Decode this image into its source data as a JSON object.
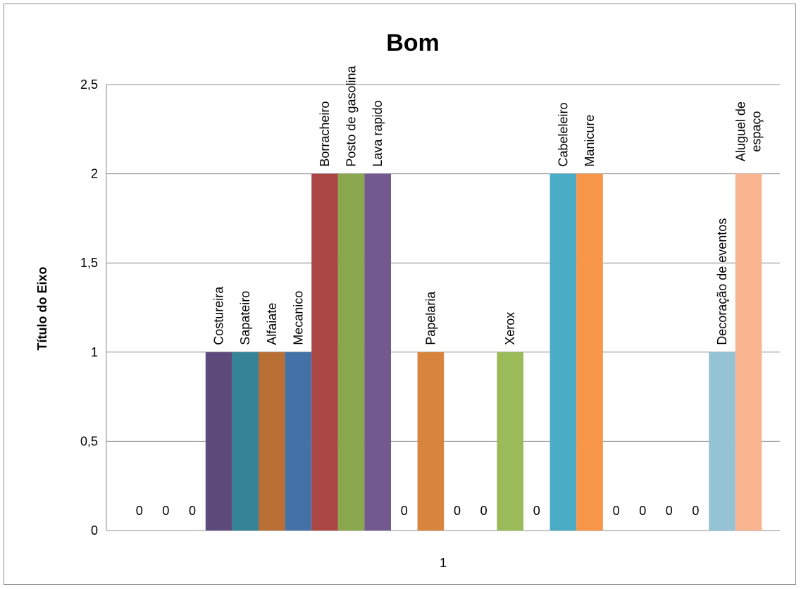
{
  "chart_data": {
    "type": "bar",
    "title": "Bom",
    "ylabel": "Título do Eixo",
    "xlabel": "",
    "categories": [
      "1"
    ],
    "ylim": [
      0,
      2.5
    ],
    "yticks": [
      "0",
      "0,5",
      "1",
      "1,5",
      "2",
      "2,5"
    ],
    "grid": true,
    "legend": "none",
    "series": [
      {
        "label": "",
        "value": 0,
        "color": "#4f81bd"
      },
      {
        "label": "",
        "value": 0,
        "color": "#c0504d"
      },
      {
        "label": "",
        "value": 0,
        "color": "#9bbb59"
      },
      {
        "label": "Costureira",
        "value": 1,
        "color": "#5f4b7b"
      },
      {
        "label": "Sapateiro",
        "value": 1,
        "color": "#348397"
      },
      {
        "label": "Alfaiate",
        "value": 1,
        "color": "#b96f34"
      },
      {
        "label": "Mecanico",
        "value": 1,
        "color": "#4472a8"
      },
      {
        "label": "Borracheiro",
        "value": 2,
        "color": "#aa4644"
      },
      {
        "label": "Posto de gasolina",
        "value": 2,
        "color": "#8aa74d"
      },
      {
        "label": "Lava rapido",
        "value": 2,
        "color": "#725990"
      },
      {
        "label": "",
        "value": 0,
        "color": "#3d9bb5"
      },
      {
        "label": "Papelaria",
        "value": 1,
        "color": "#d9843c"
      },
      {
        "label": "",
        "value": 0,
        "color": "#8096c4"
      },
      {
        "label": "",
        "value": 0,
        "color": "#c67c7c"
      },
      {
        "label": "Xerox",
        "value": 1,
        "color": "#9bbb59"
      },
      {
        "label": "",
        "value": 0,
        "color": "#8064a2"
      },
      {
        "label": "Cabeleleiro",
        "value": 2,
        "color": "#4bacc6"
      },
      {
        "label": "Manicure",
        "value": 2,
        "color": "#f79646"
      },
      {
        "label": "",
        "value": 0,
        "color": "#95b3d7"
      },
      {
        "label": "",
        "value": 0,
        "color": "#da9694"
      },
      {
        "label": "",
        "value": 0,
        "color": "#c3d69b"
      },
      {
        "label": "",
        "value": 0,
        "color": "#b2a1c7"
      },
      {
        "label": "Decoração de eventos",
        "value": 1,
        "color": "#93c3d5"
      },
      {
        "label": "Aluguel de\nespaço",
        "value": 2,
        "color": "#f8b58f"
      }
    ]
  }
}
